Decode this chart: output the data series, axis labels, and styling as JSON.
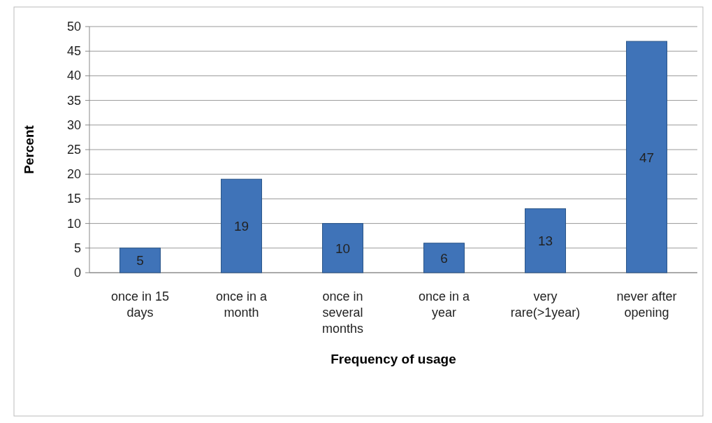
{
  "chart_data": {
    "type": "bar",
    "xlabel": "Frequency of usage",
    "ylabel": "Percent",
    "categories": [
      "once in 15 days",
      "once in a month",
      "once in several months",
      "once in a year",
      "very rare(>1year)",
      "never after opening"
    ],
    "values": [
      5,
      19,
      10,
      6,
      13,
      47
    ],
    "color": "#3f73b8",
    "ylim": [
      0,
      50
    ],
    "yticks": [
      0,
      5,
      10,
      15,
      20,
      25,
      30,
      35,
      40,
      45,
      50
    ],
    "grid": "y",
    "data_labels": true
  }
}
